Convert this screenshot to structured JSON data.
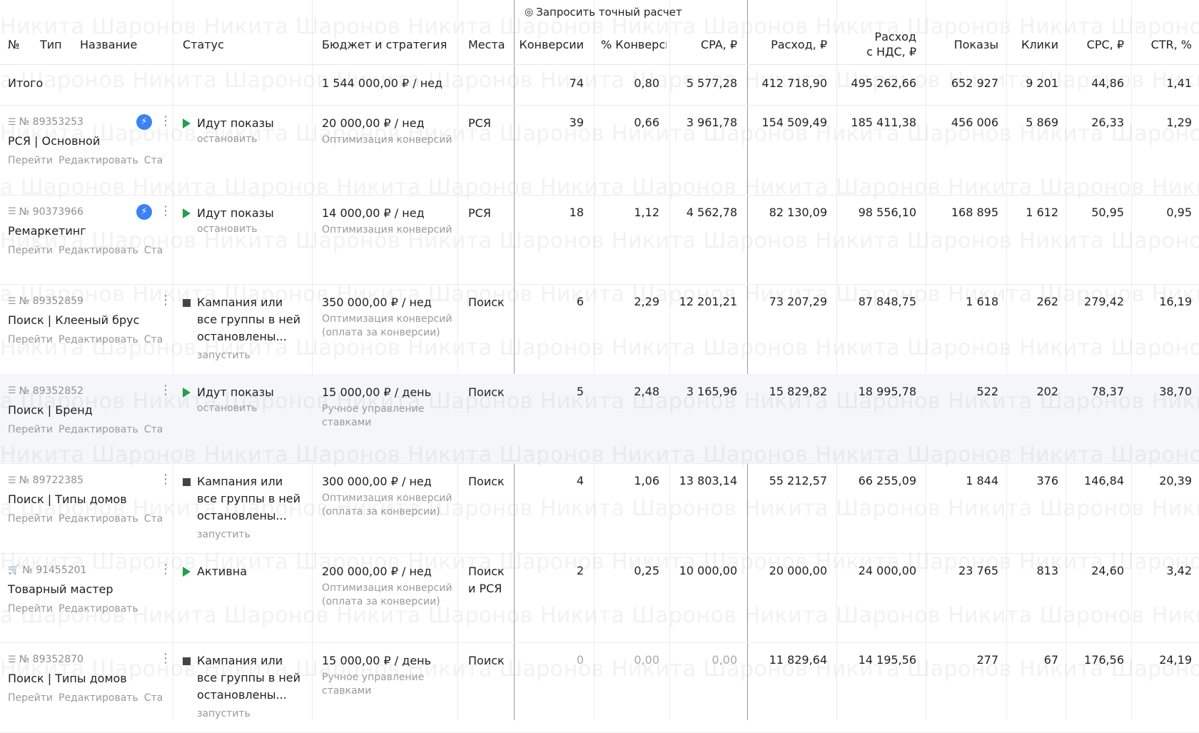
{
  "toolbar": {
    "request_icon": "target-icon",
    "request_label": "Запросить точный расчет"
  },
  "watermark_text": "Никита Шаронов Никита Шаронов Никита Шаронов Никита Шаронов Никита Шаронов Никита Шаронов Никита Шаронов",
  "columns": {
    "num": "№",
    "type": "Тип",
    "name": "Название",
    "status": "Статус",
    "budget": "Бюджет и стратегия",
    "places": "Места",
    "conversions": "Конверсии",
    "conv_pct": "% Конверсий",
    "cpa": "CPA, ₽",
    "spend": "Расход, ₽",
    "spend_vat_1": "Расход",
    "spend_vat_2": "с НДС, ₽",
    "impressions": "Показы",
    "clicks": "Клики",
    "cpc": "CPC, ₽",
    "ctr": "CTR, %"
  },
  "total": {
    "label": "Итого",
    "budget": "1 544 000,00 ₽ / нед",
    "conversions": "74",
    "conv_pct": "0,80",
    "cpa": "5 577,28",
    "spend": "412 718,90",
    "spend_vat": "495 262,66",
    "impressions": "652 927",
    "clicks": "9 201",
    "cpc": "44,86",
    "ctr": "1,41"
  },
  "link_labels": {
    "goto": "Перейти",
    "edit": "Редактировать",
    "stats": "Статистика"
  },
  "campaigns": [
    {
      "type_icon": "text-campaign-icon",
      "id": "№ 89353253",
      "name": "РСЯ | Основной",
      "status": "Идут показы",
      "status_link": "остановить",
      "budget": "20 000,00 ₽ / нед",
      "strategy": "Оптимизация конверсий",
      "places": "РСЯ",
      "conversions": "39",
      "conv_pct": "0,66",
      "cpa": "3 961,78",
      "spend": "154 509,49",
      "spend_vat": "185 411,38",
      "impressions": "456 006",
      "clicks": "5 869",
      "cpc": "26,33",
      "ctr": "1,29"
    },
    {
      "type_icon": "text-campaign-icon",
      "id": "№ 90373966",
      "name": "Ремаркетинг",
      "status": "Идут показы",
      "status_link": "остановить",
      "budget": "14 000,00 ₽ / нед",
      "strategy": "Оптимизация конверсий",
      "places": "РСЯ",
      "conversions": "18",
      "conv_pct": "1,12",
      "cpa": "4 562,78",
      "spend": "82 130,09",
      "spend_vat": "98 556,10",
      "impressions": "168 895",
      "clicks": "1 612",
      "cpc": "50,95",
      "ctr": "0,95"
    },
    {
      "type_icon": "text-campaign-icon",
      "id": "№ 89352859",
      "name": "Поиск | Клееный брус",
      "status": "Кампания или все группы в ней остановлены...",
      "status_link": "запустить",
      "budget": "350 000,00 ₽ / нед",
      "strategy": "Оптимизация конверсий (оплата за конверсии)",
      "places": "Поиск",
      "conversions": "6",
      "conv_pct": "2,29",
      "cpa": "12 201,21",
      "spend": "73 207,29",
      "spend_vat": "87 848,75",
      "impressions": "1 618",
      "clicks": "262",
      "cpc": "279,42",
      "ctr": "16,19"
    },
    {
      "type_icon": "text-campaign-icon",
      "id": "№ 89352852",
      "name": "Поиск | Бренд",
      "status": "Идут показы",
      "status_link": "остановить",
      "budget": "15 000,00 ₽ / день",
      "strategy": "Ручное управление ставками",
      "places": "Поиск",
      "conversions": "5",
      "conv_pct": "2,48",
      "cpa": "3 165,96",
      "spend": "15 829,82",
      "spend_vat": "18 995,78",
      "impressions": "522",
      "clicks": "202",
      "cpc": "78,37",
      "ctr": "38,70"
    },
    {
      "type_icon": "text-campaign-icon",
      "id": "№ 89722385",
      "name": "Поиск | Типы домов",
      "status": "Кампания или все группы в ней остановлены...",
      "status_link": "запустить",
      "budget": "300 000,00 ₽ / нед",
      "strategy": "Оптимизация конверсий (оплата за конверсии)",
      "places": "Поиск",
      "conversions": "4",
      "conv_pct": "1,06",
      "cpa": "13 803,14",
      "spend": "55 212,57",
      "spend_vat": "66 255,09",
      "impressions": "1 844",
      "clicks": "376",
      "cpc": "146,84",
      "ctr": "20,39"
    },
    {
      "type_icon": "cart-icon",
      "id": "№ 91455201",
      "name": "Товарный мастер",
      "status": "Активна",
      "status_link": "",
      "budget": "200 000,00 ₽ / нед",
      "strategy": "Оптимизация конверсий (оплата за конверсии)",
      "places_1": "Поиск",
      "places_2": "и РСЯ",
      "conversions": "2",
      "conv_pct": "0,25",
      "cpa": "10 000,00",
      "spend": "20 000,00",
      "spend_vat": "24 000,00",
      "impressions": "23 765",
      "clicks": "813",
      "cpc": "24,60",
      "ctr": "3,42"
    },
    {
      "type_icon": "text-campaign-icon",
      "id": "№ 89352870",
      "name": "Поиск | Типы домов",
      "status": "Кампания или все группы в ней остановлены...",
      "status_link": "запустить",
      "budget": "15 000,00 ₽ / день",
      "strategy": "Ручное управление ставками",
      "places": "Поиск",
      "conversions": "0",
      "conv_pct": "0,00",
      "cpa": "0,00",
      "spend": "11 829,64",
      "spend_vat": "14 195,56",
      "impressions": "277",
      "clicks": "67",
      "cpc": "176,56",
      "ctr": "24,19"
    }
  ],
  "colors": {
    "active": "#22a04a",
    "stopped": "#444444",
    "autotarget": "#3b82f6",
    "muted": "#9a9a9a",
    "highlight_row": "#f4f6fa"
  }
}
